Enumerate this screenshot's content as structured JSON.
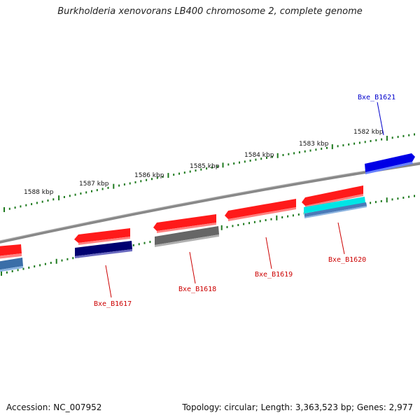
{
  "title": "Burkholderia xenovorans LB400 chromosome 2, complete genome",
  "footer": {
    "accession": "Accession: NC_007952",
    "summary": "Topology: circular; Length: 3,363,523 bp; Genes: 2,977"
  },
  "colors": {
    "backbone": "#8a8a8a",
    "ruler": "#1e7a1e",
    "forward_gene": "#ff1a1a",
    "reverse_gene_red_label": "#cc0000",
    "blue_label": "#0000cc"
  },
  "ruler_labels": [
    "1588 kbp",
    "1587 kbp",
    "1586 kbp",
    "1585 kbp",
    "1584 kbp",
    "1583 kbp",
    "1582 kbp"
  ],
  "genes": [
    {
      "label": "Bxe_B1621",
      "color": "#0000cc"
    },
    {
      "label": "Bxe_B1620",
      "color": "#cc0000"
    },
    {
      "label": "Bxe_B1619",
      "color": "#cc0000"
    },
    {
      "label": "Bxe_B1618",
      "color": "#cc0000"
    },
    {
      "label": "Bxe_B1617",
      "color": "#cc0000"
    }
  ]
}
